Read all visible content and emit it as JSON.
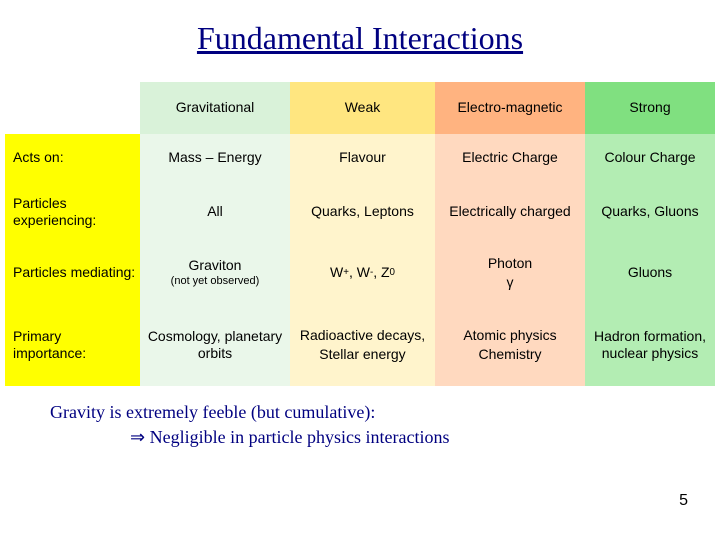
{
  "title": "Fundamental Interactions",
  "colors": {
    "corner_bg": "#ffffff",
    "rowhead_bg": "#ffff00",
    "grav_header_bg": "#d9f2d9",
    "grav_cell_bg": "#eaf7ea",
    "weak_header_bg": "#ffe680",
    "weak_cell_bg": "#fff4cc",
    "em_header_bg": "#ffb380",
    "em_cell_bg": "#ffd9bf",
    "strong_header_bg": "#80e080",
    "strong_cell_bg": "#b3edb3",
    "title_color": "#000080",
    "footer_color": "#000080",
    "text_color": "#000000"
  },
  "headers": {
    "grav": "Gravitational",
    "weak": "Weak",
    "em": "Electro-magnetic",
    "strong": "Strong"
  },
  "rows": {
    "acts_on": {
      "label": "Acts on:",
      "grav": "Mass – Energy",
      "weak": "Flavour",
      "em": "Electric Charge",
      "strong": "Colour Charge"
    },
    "experiencing": {
      "label": "Particles experiencing:",
      "grav": "All",
      "weak": "Quarks, Leptons",
      "em": "Electrically charged",
      "strong": "Quarks, Gluons"
    },
    "mediating": {
      "label": "Particles mediating:",
      "grav_main": "Graviton",
      "grav_sub": "(not yet observed)",
      "weak_html": "W<sup>+</sup>, W<sup>-</sup>, Z<sup>0</sup>",
      "em_main": "Photon",
      "em_sub": "γ",
      "strong": "Gluons"
    },
    "importance": {
      "label": "Primary importance:",
      "grav": "Cosmology, planetary orbits",
      "weak_l1": "Radioactive decays,",
      "weak_l2": "Stellar energy",
      "em_l1": "Atomic physics",
      "em_l2": "Chemistry",
      "strong": "Hadron formation, nuclear physics"
    }
  },
  "footer": {
    "line1": "Gravity is extremely feeble (but cumulative):",
    "arrow": "⇒",
    "line2": "Negligible in particle physics interactions"
  },
  "page_number": "5"
}
